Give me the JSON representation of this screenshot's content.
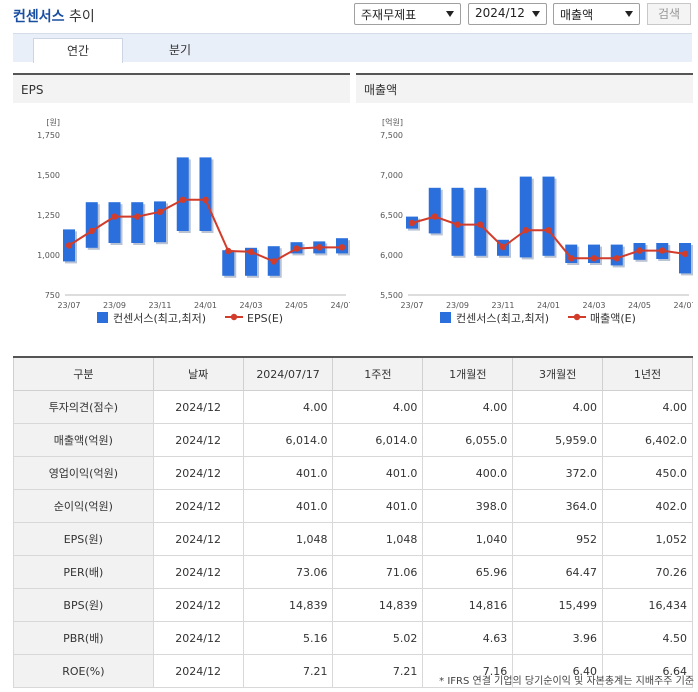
{
  "header": {
    "brand": "컨센서스",
    "suffix": "추이",
    "select_type": "주재무제표",
    "select_period": "2024/12",
    "select_metric": "매출액",
    "search_label": "검색"
  },
  "tabs": [
    {
      "label": "연간"
    },
    {
      "label": "분기"
    }
  ],
  "charts": {
    "eps_title": "EPS",
    "sales_title": "매출액"
  },
  "chart_data": [
    {
      "type": "bar",
      "title": "EPS",
      "unit": "[원]",
      "ylim": [
        750,
        1750
      ],
      "yticks": [
        "1,750",
        "1,500",
        "1,250",
        "1,000",
        "750"
      ],
      "ytick_values": [
        1750,
        1500,
        1250,
        1000,
        750
      ],
      "categories": [
        "23/07",
        "23/08",
        "23/09",
        "23/10",
        "23/11",
        "23/12",
        "24/01",
        "24/02",
        "24/03",
        "24/04",
        "24/05",
        "24/06",
        "24/07"
      ],
      "xtick_labels": [
        "23/07",
        "23/09",
        "23/11",
        "24/01",
        "24/03",
        "24/05",
        "24/07"
      ],
      "series": [
        {
          "name": "컨센서스(최고,최저)",
          "type": "range-bar",
          "color": "#2a6fdc",
          "high": [
            1160,
            1330,
            1330,
            1330,
            1335,
            1610,
            1610,
            1030,
            1045,
            1055,
            1080,
            1085,
            1105
          ],
          "low": [
            960,
            1045,
            1075,
            1075,
            1080,
            1150,
            1150,
            870,
            870,
            870,
            1010,
            1010,
            1010
          ]
        },
        {
          "name": "EPS(E)",
          "type": "line",
          "color": "#d23c2a",
          "values": [
            1060,
            1150,
            1240,
            1240,
            1270,
            1345,
            1345,
            1025,
            1020,
            960,
            1040,
            1048,
            1048
          ]
        }
      ],
      "grid": false,
      "legend": "bottom"
    },
    {
      "type": "bar",
      "title": "매출액",
      "unit": "[억원]",
      "ylim": [
        5500,
        7500
      ],
      "yticks": [
        "7,500",
        "7,000",
        "6,500",
        "6,000",
        "5,500"
      ],
      "ytick_values": [
        7500,
        7000,
        6500,
        6000,
        5500
      ],
      "categories": [
        "23/07",
        "23/08",
        "23/09",
        "23/10",
        "23/11",
        "23/12",
        "24/01",
        "24/02",
        "24/03",
        "24/04",
        "24/05",
        "24/06",
        "24/07"
      ],
      "xtick_labels": [
        "23/07",
        "23/09",
        "23/11",
        "24/01",
        "24/03",
        "24/05",
        "24/07"
      ],
      "series": [
        {
          "name": "컨센서스(최고,최저)",
          "type": "range-bar",
          "color": "#2a6fdc",
          "high": [
            6480,
            6840,
            6840,
            6840,
            6190,
            6980,
            6980,
            6130,
            6130,
            6130,
            6150,
            6150,
            6150
          ],
          "low": [
            6330,
            6270,
            5990,
            5990,
            5990,
            5970,
            5990,
            5900,
            5900,
            5870,
            5940,
            5950,
            5770
          ]
        },
        {
          "name": "매출액(E)",
          "type": "line",
          "color": "#d23c2a",
          "values": [
            6400,
            6480,
            6380,
            6380,
            6100,
            6310,
            6310,
            5959,
            5959,
            5959,
            6055,
            6055,
            6014
          ]
        }
      ],
      "grid": false,
      "legend": "bottom"
    }
  ],
  "table": {
    "headers": [
      "구분",
      "날짜",
      "2024/07/17",
      "1주전",
      "1개월전",
      "3개월전",
      "1년전"
    ],
    "rows": [
      {
        "label": "투자의견(점수)",
        "date": "2024/12",
        "values": [
          "4.00",
          "4.00",
          "4.00",
          "4.00",
          "4.00"
        ]
      },
      {
        "label": "매출액(억원)",
        "date": "2024/12",
        "values": [
          "6,014.0",
          "6,014.0",
          "6,055.0",
          "5,959.0",
          "6,402.0"
        ]
      },
      {
        "label": "영업이익(억원)",
        "date": "2024/12",
        "values": [
          "401.0",
          "401.0",
          "400.0",
          "372.0",
          "450.0"
        ]
      },
      {
        "label": "순이익(억원)",
        "date": "2024/12",
        "values": [
          "401.0",
          "401.0",
          "398.0",
          "364.0",
          "402.0"
        ]
      },
      {
        "label": "EPS(원)",
        "date": "2024/12",
        "values": [
          "1,048",
          "1,048",
          "1,040",
          "952",
          "1,052"
        ]
      },
      {
        "label": "PER(배)",
        "date": "2024/12",
        "values": [
          "73.06",
          "71.06",
          "65.96",
          "64.47",
          "70.26"
        ]
      },
      {
        "label": "BPS(원)",
        "date": "2024/12",
        "values": [
          "14,839",
          "14,839",
          "14,816",
          "15,499",
          "16,434"
        ]
      },
      {
        "label": "PBR(배)",
        "date": "2024/12",
        "values": [
          "5.16",
          "5.02",
          "4.63",
          "3.96",
          "4.50"
        ]
      },
      {
        "label": "ROE(%)",
        "date": "2024/12",
        "values": [
          "7.21",
          "7.21",
          "7.16",
          "6.40",
          "6.64"
        ]
      }
    ]
  },
  "footnote": "* IFRS 연결 기업의 당기순이익 및 자본총계는 지배주주 기준"
}
